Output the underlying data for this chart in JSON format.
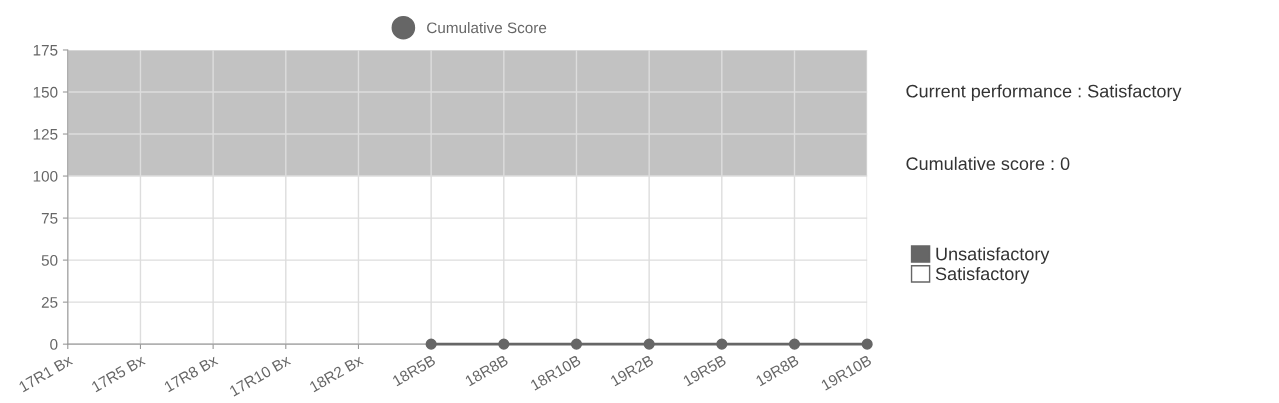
{
  "chart_data": {
    "type": "line",
    "categories": [
      "17R1 Bx",
      "17R5 Bx",
      "17R8 Bx",
      "17R10 Bx",
      "18R2 Bx",
      "18R5B",
      "18R8B",
      "18R10B",
      "19R2B",
      "19R5B",
      "19R8B",
      "19R10B"
    ],
    "series": [
      {
        "name": "Cumulative Score",
        "color": "#666666",
        "values": [
          null,
          null,
          null,
          null,
          null,
          0,
          0,
          0,
          0,
          0,
          0,
          0
        ]
      }
    ],
    "ylim": [
      0,
      175
    ],
    "yticks": [
      0,
      25,
      50,
      75,
      100,
      125,
      150,
      175
    ],
    "bands": [
      {
        "axis": "y",
        "from": 100,
        "to": 175,
        "label": "Unsatisfactory",
        "color": "#666666"
      }
    ],
    "annotations": [
      "Current performance : Satisfactory",
      "Cumulative score : 0",
      "Satisfactory"
    ],
    "grid": true,
    "legend": "top",
    "marker": "circle",
    "line_style": "solid"
  }
}
